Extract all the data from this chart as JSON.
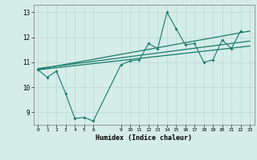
{
  "title": "",
  "xlabel": "Humidex (Indice chaleur)",
  "bg_color": "#d4ede8",
  "grid_color": "#b8d8d0",
  "line_color": "#1a7a6a",
  "xlim": [
    -0.5,
    23.5
  ],
  "ylim": [
    8.5,
    13.3
  ],
  "xticks": [
    0,
    1,
    2,
    3,
    4,
    5,
    6,
    9,
    10,
    11,
    12,
    13,
    14,
    15,
    16,
    17,
    18,
    19,
    20,
    21,
    22,
    23
  ],
  "yticks": [
    9,
    10,
    11,
    12,
    13
  ],
  "series1_x": [
    0,
    1,
    2,
    3,
    4,
    5,
    6,
    9,
    10,
    11,
    12,
    13,
    14,
    15,
    16,
    17,
    18,
    19,
    20,
    21,
    22
  ],
  "series1_y": [
    10.7,
    10.4,
    10.65,
    9.75,
    8.75,
    8.8,
    8.65,
    10.9,
    11.05,
    11.1,
    11.75,
    11.55,
    13.0,
    12.35,
    11.7,
    11.75,
    11.0,
    11.1,
    11.9,
    11.55,
    12.25
  ],
  "series2_x": [
    0,
    23
  ],
  "series2_y": [
    10.7,
    11.65
  ],
  "series3_x": [
    0,
    23
  ],
  "series3_y": [
    10.75,
    11.85
  ],
  "series4_x": [
    0,
    23
  ],
  "series4_y": [
    10.72,
    12.25
  ]
}
